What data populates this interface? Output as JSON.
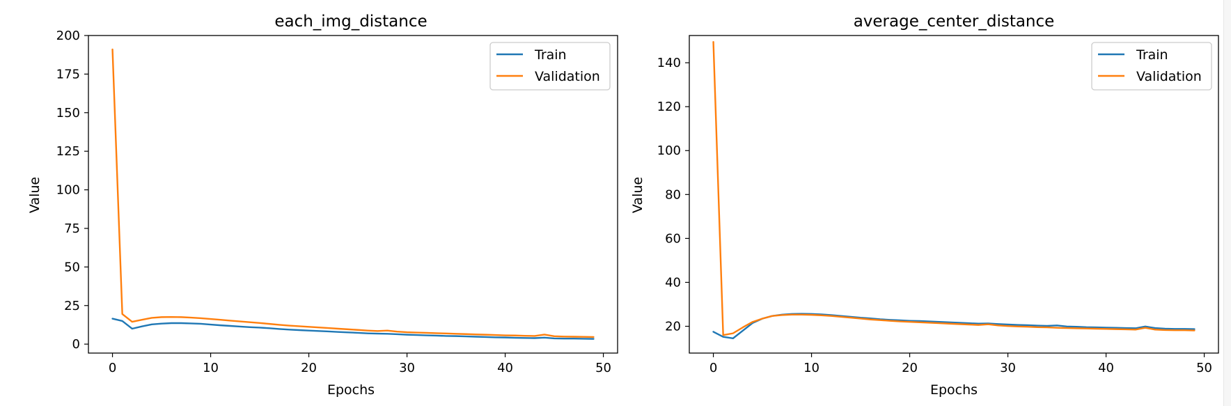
{
  "colors": {
    "train": "#1f77b4",
    "validation": "#ff7f0e",
    "axes": "#000000",
    "background": "#ffffff"
  },
  "chart_data": [
    {
      "type": "line",
      "title": "each_img_distance",
      "xlabel": "Epochs",
      "ylabel": "Value",
      "xlim": [
        -2.45,
        51.45
      ],
      "ylim": [
        -5.8,
        200
      ],
      "xticks": [
        0,
        10,
        20,
        30,
        40,
        50
      ],
      "yticks": [
        0,
        25,
        50,
        75,
        100,
        125,
        150,
        175,
        200
      ],
      "grid": false,
      "legend": "top-right",
      "x": [
        0,
        1,
        2,
        3,
        4,
        5,
        6,
        7,
        8,
        9,
        10,
        11,
        12,
        13,
        14,
        15,
        16,
        17,
        18,
        19,
        20,
        21,
        22,
        23,
        24,
        25,
        26,
        27,
        28,
        29,
        30,
        31,
        32,
        33,
        34,
        35,
        36,
        37,
        38,
        39,
        40,
        41,
        42,
        43,
        44,
        45,
        46,
        47,
        48,
        49
      ],
      "series": [
        {
          "name": "Train",
          "color_key": "train",
          "values": [
            16.5,
            15,
            10,
            11.5,
            12.8,
            13.3,
            13.6,
            13.6,
            13.4,
            13.2,
            12.7,
            12.2,
            11.8,
            11.4,
            11,
            10.7,
            10.3,
            9.8,
            9.4,
            9.1,
            8.8,
            8.5,
            8.2,
            7.9,
            7.6,
            7.3,
            7,
            6.8,
            6.7,
            6.4,
            6.1,
            5.9,
            5.7,
            5.5,
            5.3,
            5.2,
            5.0,
            4.8,
            4.6,
            4.4,
            4.3,
            4.1,
            4.0,
            3.9,
            4.2,
            3.7,
            3.6,
            3.6,
            3.5,
            3.4
          ]
        },
        {
          "name": "Validation",
          "color_key": "validation",
          "values": [
            191,
            19.5,
            14.5,
            15.8,
            17,
            17.5,
            17.6,
            17.5,
            17.2,
            16.8,
            16.3,
            15.8,
            15.2,
            14.7,
            14.2,
            13.7,
            13.1,
            12.5,
            12,
            11.6,
            11.2,
            10.8,
            10.4,
            10,
            9.6,
            9.2,
            8.8,
            8.5,
            8.8,
            8.1,
            7.7,
            7.5,
            7.3,
            7.1,
            6.9,
            6.7,
            6.5,
            6.3,
            6.1,
            5.9,
            5.7,
            5.6,
            5.4,
            5.3,
            6.2,
            5.1,
            4.9,
            4.8,
            4.7,
            4.6
          ]
        }
      ]
    },
    {
      "type": "line",
      "title": "average_center_distance",
      "xlabel": "Epochs",
      "ylabel": "Value",
      "xlim": [
        -2.45,
        51.45
      ],
      "ylim": [
        7.8,
        152.4
      ],
      "xticks": [
        0,
        10,
        20,
        30,
        40,
        50
      ],
      "yticks": [
        20,
        40,
        60,
        80,
        100,
        120,
        140
      ],
      "grid": false,
      "legend": "top-right",
      "x": [
        0,
        1,
        2,
        3,
        4,
        5,
        6,
        7,
        8,
        9,
        10,
        11,
        12,
        13,
        14,
        15,
        16,
        17,
        18,
        19,
        20,
        21,
        22,
        23,
        24,
        25,
        26,
        27,
        28,
        29,
        30,
        31,
        32,
        33,
        34,
        35,
        36,
        37,
        38,
        39,
        40,
        41,
        42,
        43,
        44,
        45,
        46,
        47,
        48,
        49
      ],
      "series": [
        {
          "name": "Train",
          "color_key": "train",
          "values": [
            17.5,
            15.2,
            14.5,
            18,
            21.5,
            23.5,
            24.7,
            25.3,
            25.6,
            25.7,
            25.6,
            25.4,
            25.1,
            24.7,
            24.3,
            23.9,
            23.6,
            23.2,
            22.9,
            22.7,
            22.5,
            22.4,
            22.2,
            22,
            21.8,
            21.6,
            21.4,
            21.2,
            21.3,
            21,
            20.8,
            20.6,
            20.5,
            20.3,
            20.2,
            20.4,
            19.9,
            19.8,
            19.6,
            19.5,
            19.4,
            19.3,
            19.2,
            19.1,
            19.9,
            19.2,
            18.9,
            18.8,
            18.8,
            18.7
          ]
        },
        {
          "name": "Validation",
          "color_key": "validation",
          "values": [
            149.5,
            16,
            16.8,
            19.5,
            22,
            23.5,
            24.7,
            25.1,
            25.3,
            25.3,
            25.2,
            25,
            24.7,
            24.3,
            23.9,
            23.5,
            23.1,
            22.8,
            22.5,
            22.2,
            22,
            21.8,
            21.6,
            21.4,
            21.2,
            21,
            20.8,
            20.6,
            20.9,
            20.4,
            20.1,
            19.9,
            19.8,
            19.6,
            19.5,
            19.3,
            19.2,
            19.1,
            19,
            18.9,
            18.8,
            18.7,
            18.6,
            18.5,
            19.3,
            18.5,
            18.3,
            18.2,
            18.2,
            18.1
          ]
        }
      ]
    }
  ]
}
